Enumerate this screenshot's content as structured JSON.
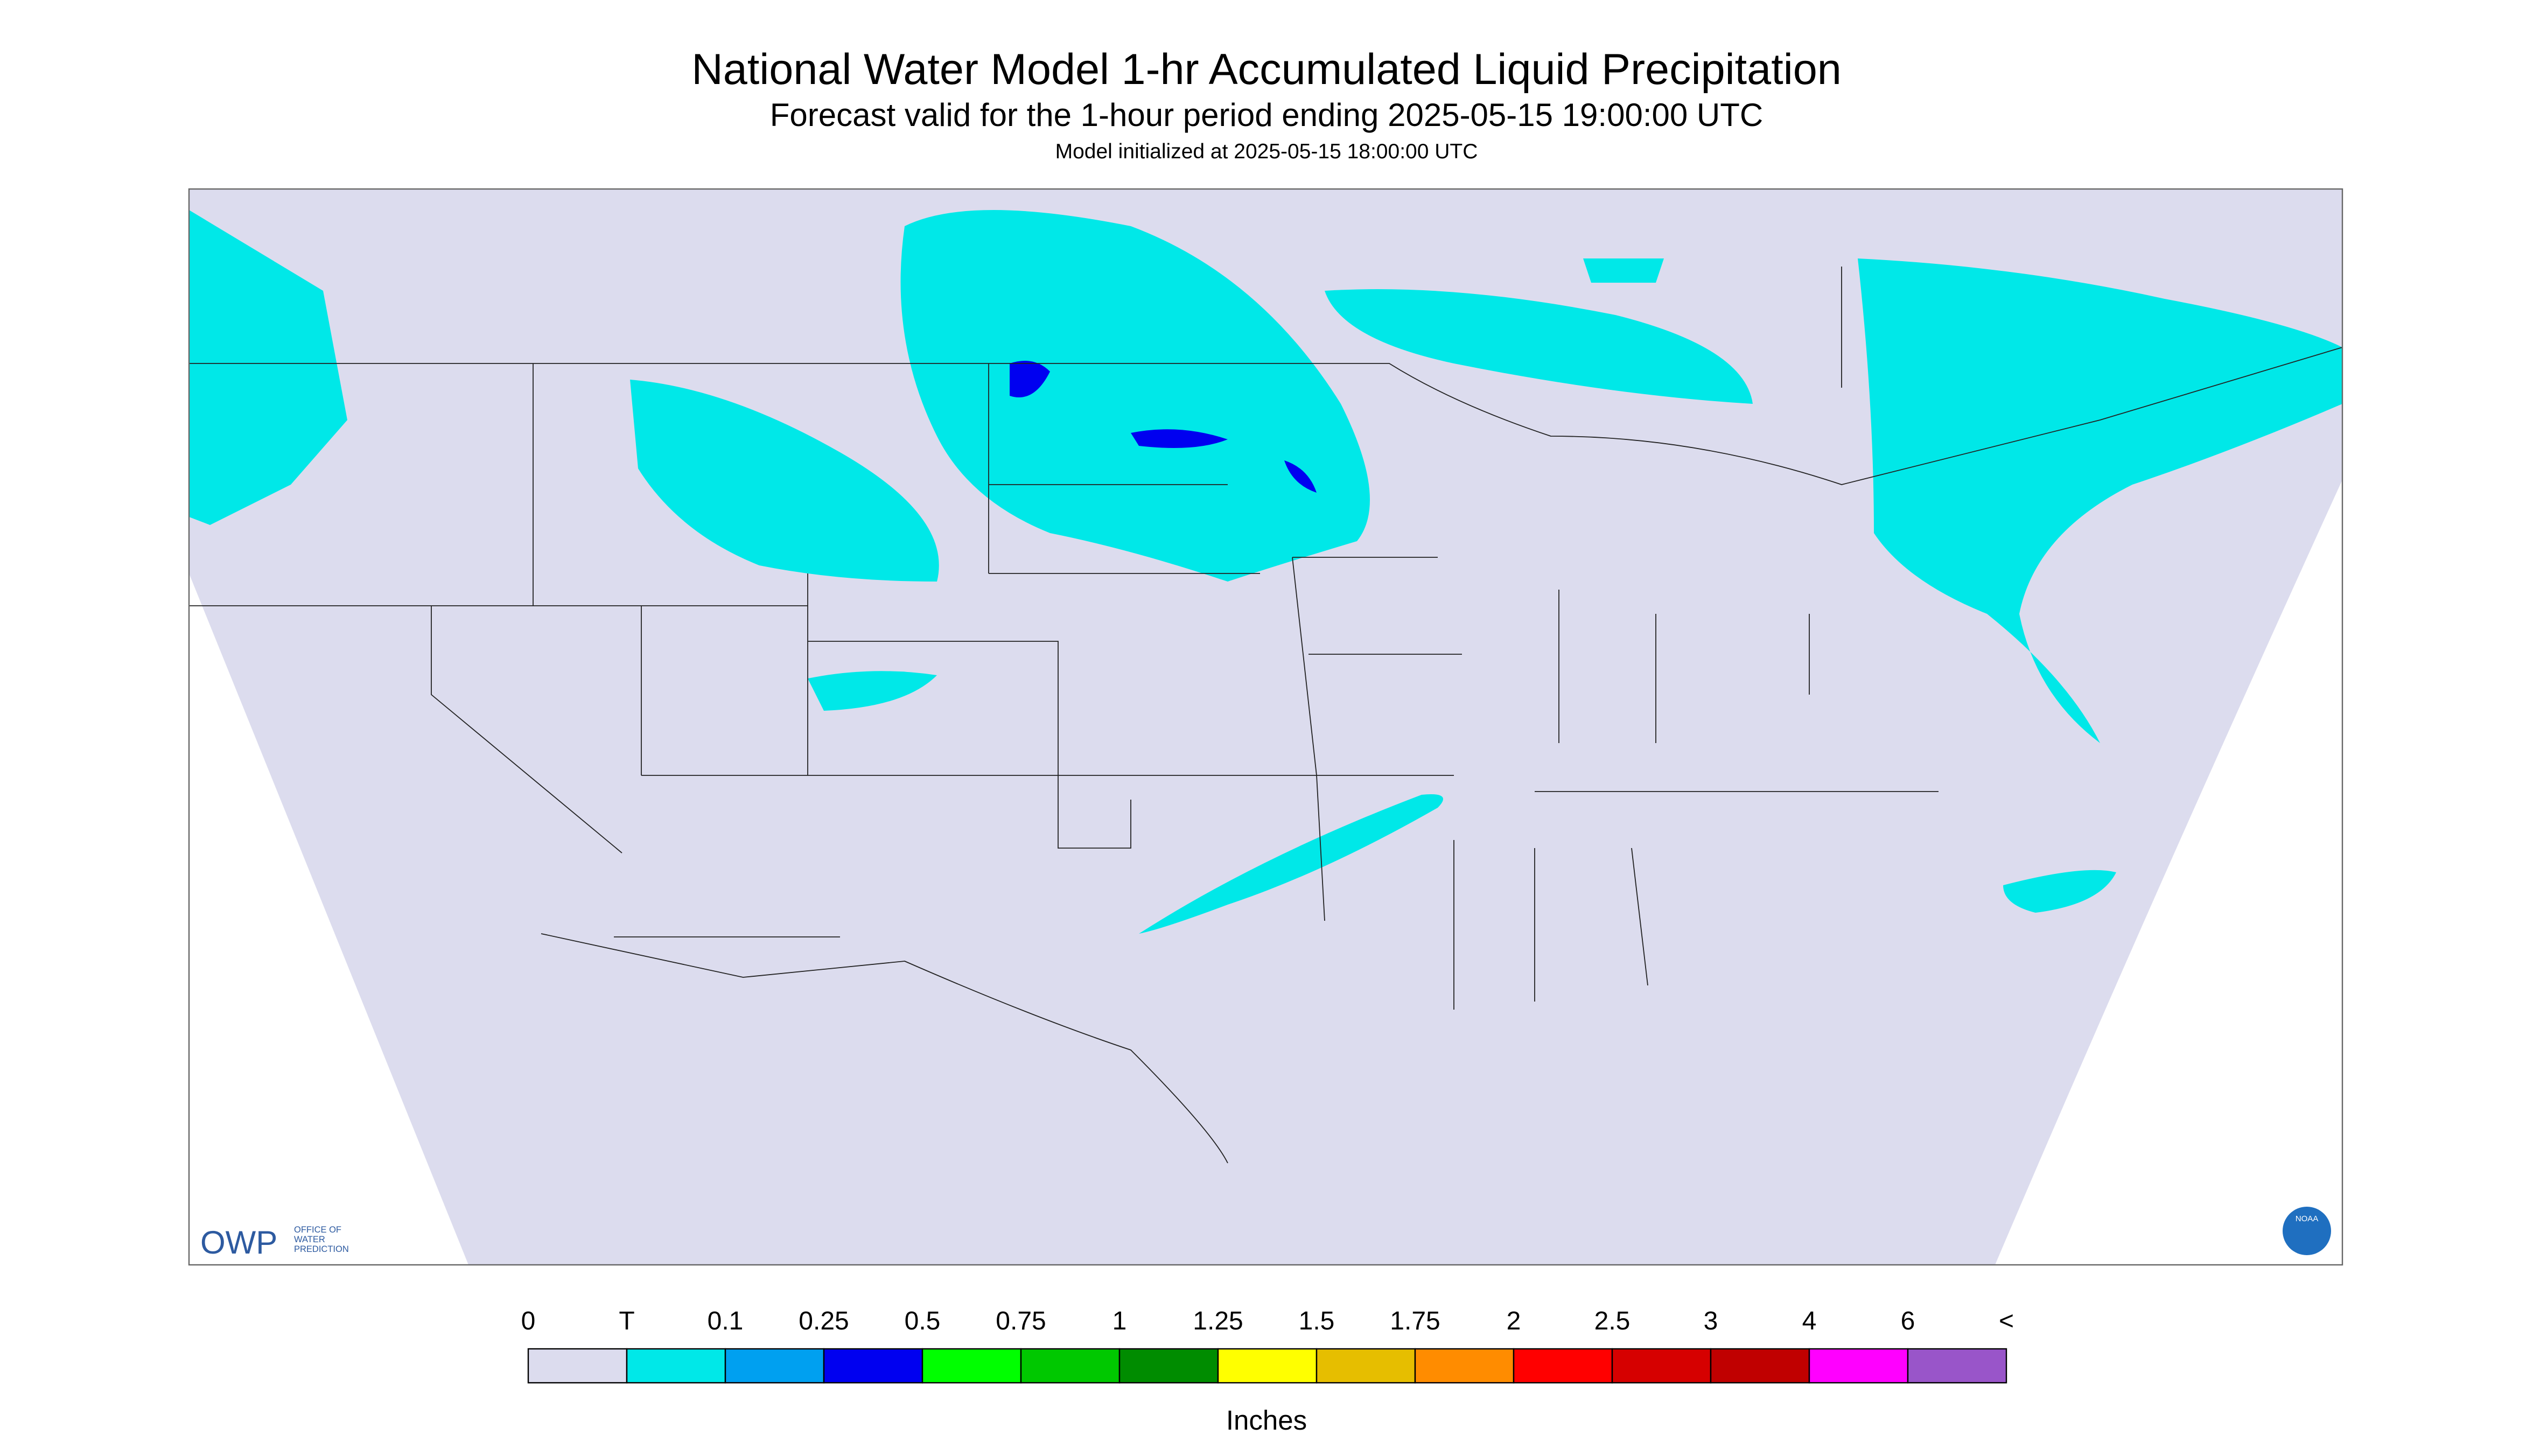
{
  "header": {
    "title": "National Water Model 1-hr Accumulated Liquid Precipitation",
    "subtitle": "Forecast valid for the 1-hour period ending 2025-05-15 19:00:00 UTC",
    "init": "Model initialized at 2025-05-15 18:00:00 UTC"
  },
  "logo": {
    "abbr": "OWP",
    "line1": "OFFICE OF",
    "line2": "WATER",
    "line3": "PREDICTION",
    "agency": "NOAA"
  },
  "legend": {
    "labels": [
      "0",
      "T",
      "0.1",
      "0.25",
      "0.5",
      "0.75",
      "1",
      "1.25",
      "1.5",
      "1.75",
      "2",
      "2.5",
      "3",
      "4",
      "6",
      "<"
    ],
    "colors": [
      "#dcdcee",
      "#00e8e8",
      "#00a0f0",
      "#0000f0",
      "#00ff00",
      "#00c800",
      "#008c00",
      "#ffff00",
      "#e6be00",
      "#ff8c00",
      "#ff0000",
      "#d60000",
      "#c00000",
      "#ff00ff",
      "#9955c9"
    ],
    "unit": "Inches"
  }
}
